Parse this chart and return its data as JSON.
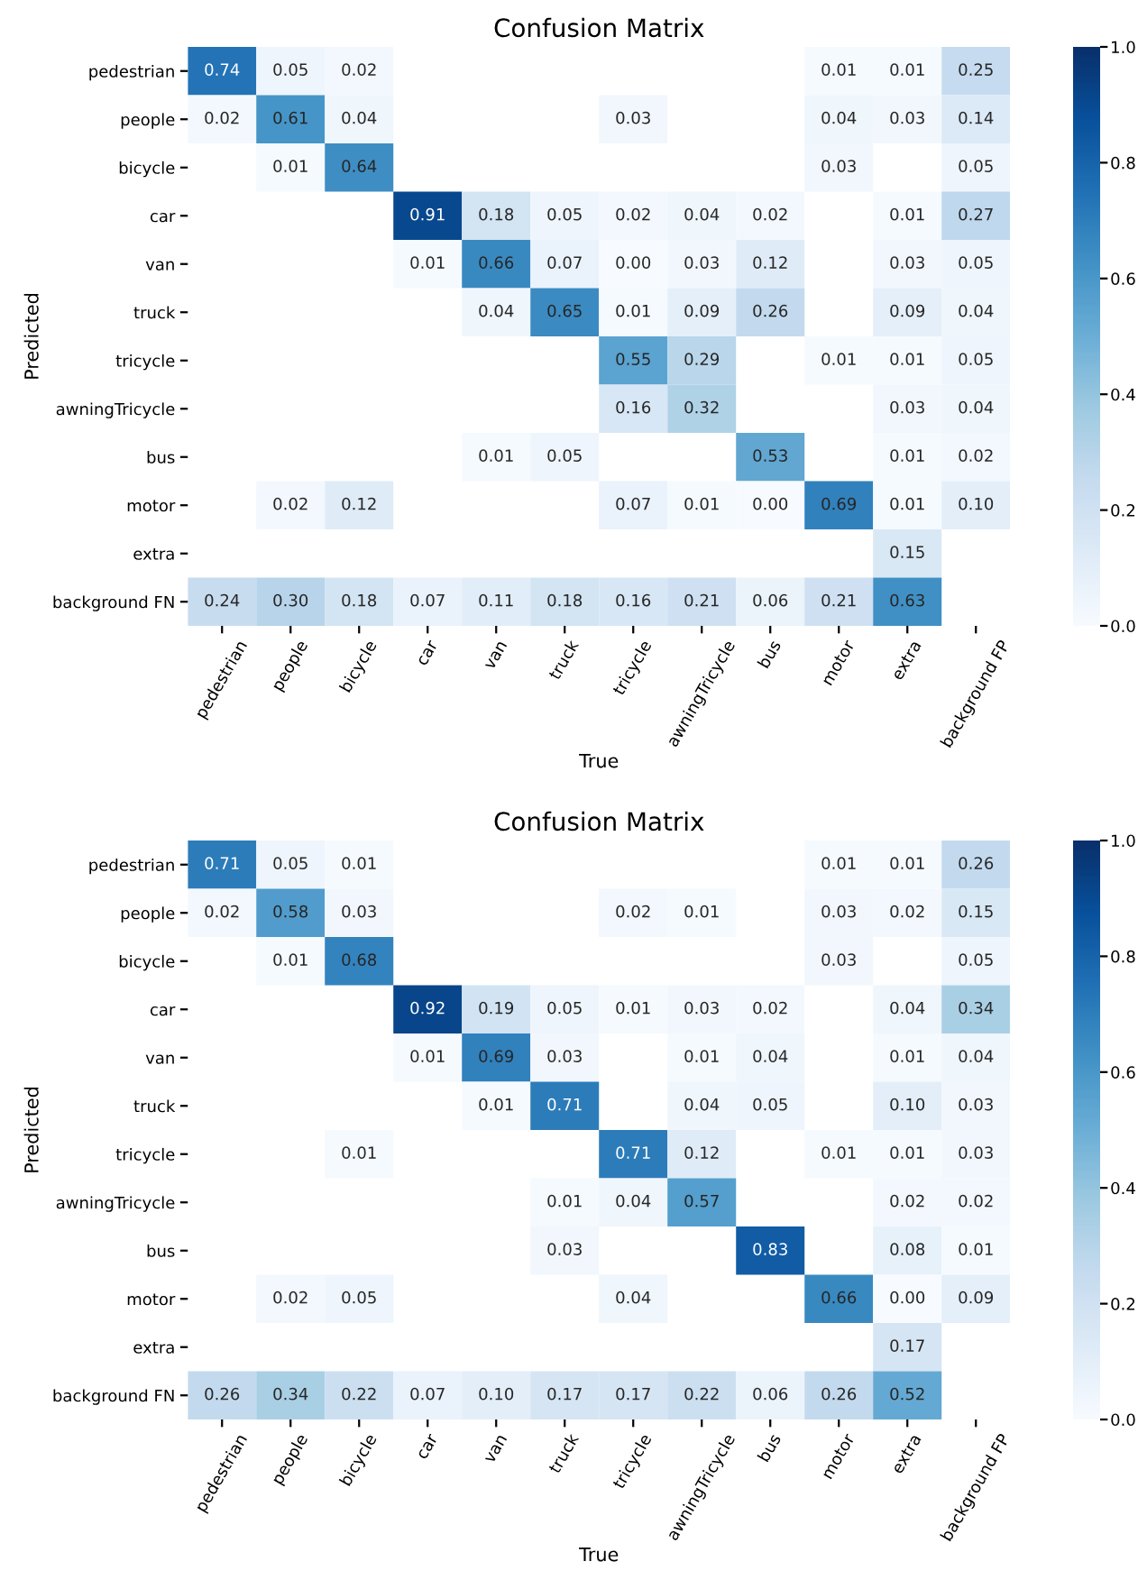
{
  "chart_data": [
    {
      "type": "heatmap",
      "title": "Confusion Matrix",
      "xlabel": "True",
      "ylabel": "Predicted",
      "categories": [
        "pedestrian",
        "people",
        "bicycle",
        "car",
        "van",
        "truck",
        "tricycle",
        "awningTricycle",
        "bus",
        "motor",
        "extra",
        "background FP"
      ],
      "y_categories": [
        "pedestrian",
        "people",
        "bicycle",
        "car",
        "van",
        "truck",
        "tricycle",
        "awningTricycle",
        "bus",
        "motor",
        "extra",
        "background FN"
      ],
      "cells": [
        [
          0.74,
          0.05,
          0.02,
          null,
          null,
          null,
          null,
          null,
          null,
          0.01,
          0.01,
          0.25
        ],
        [
          0.02,
          0.61,
          0.04,
          null,
          null,
          null,
          0.03,
          null,
          null,
          0.04,
          0.03,
          0.14
        ],
        [
          null,
          0.01,
          0.64,
          null,
          null,
          null,
          null,
          null,
          null,
          0.03,
          null,
          0.05
        ],
        [
          null,
          null,
          null,
          0.91,
          0.18,
          0.05,
          0.02,
          0.04,
          0.02,
          null,
          0.01,
          0.27
        ],
        [
          null,
          null,
          null,
          0.01,
          0.66,
          0.07,
          0.0,
          0.03,
          0.12,
          null,
          0.03,
          0.05
        ],
        [
          null,
          null,
          null,
          null,
          0.04,
          0.65,
          0.01,
          0.09,
          0.26,
          null,
          0.09,
          0.04
        ],
        [
          null,
          null,
          null,
          null,
          null,
          null,
          0.55,
          0.29,
          null,
          0.01,
          0.01,
          0.05
        ],
        [
          null,
          null,
          null,
          null,
          null,
          null,
          0.16,
          0.32,
          null,
          null,
          0.03,
          0.04
        ],
        [
          null,
          null,
          null,
          null,
          0.01,
          0.05,
          null,
          null,
          0.53,
          null,
          0.01,
          0.02
        ],
        [
          null,
          0.02,
          0.12,
          null,
          null,
          null,
          0.07,
          0.01,
          0.0,
          0.69,
          0.01,
          0.1
        ],
        [
          null,
          null,
          null,
          null,
          null,
          null,
          null,
          null,
          null,
          null,
          0.15,
          null
        ],
        [
          0.24,
          0.3,
          0.18,
          0.07,
          0.11,
          0.18,
          0.16,
          0.21,
          0.06,
          0.21,
          0.63,
          null
        ]
      ],
      "cell_labels": [
        [
          "0.74",
          "0.05",
          "0.02",
          null,
          null,
          null,
          null,
          null,
          null,
          "0.01",
          "0.01",
          "0.25"
        ],
        [
          "0.02",
          "0.61",
          "0.04",
          null,
          null,
          null,
          "0.03",
          null,
          null,
          "0.04",
          "0.03",
          "0.14"
        ],
        [
          null,
          "0.01",
          "0.64",
          null,
          null,
          null,
          null,
          null,
          null,
          "0.03",
          null,
          "0.05"
        ],
        [
          null,
          null,
          null,
          "0.91",
          "0.18",
          "0.05",
          "0.02",
          "0.04",
          "0.02",
          null,
          "0.01",
          "0.27"
        ],
        [
          null,
          null,
          null,
          "0.01",
          "0.66",
          "0.07",
          "0.00",
          "0.03",
          "0.12",
          null,
          "0.03",
          "0.05"
        ],
        [
          null,
          null,
          null,
          null,
          "0.04",
          "0.65",
          "0.01",
          "0.09",
          "0.26",
          null,
          "0.09",
          "0.04"
        ],
        [
          null,
          null,
          null,
          null,
          null,
          null,
          "0.55",
          "0.29",
          null,
          "0.01",
          "0.01",
          "0.05"
        ],
        [
          null,
          null,
          null,
          null,
          null,
          null,
          "0.16",
          "0.32",
          null,
          null,
          "0.03",
          "0.04"
        ],
        [
          null,
          null,
          null,
          null,
          "0.01",
          "0.05",
          null,
          null,
          "0.53",
          null,
          "0.01",
          "0.02"
        ],
        [
          null,
          "0.02",
          "0.12",
          null,
          null,
          null,
          "0.07",
          "0.01",
          "0.00",
          "0.69",
          "0.01",
          "0.10"
        ],
        [
          null,
          null,
          null,
          null,
          null,
          null,
          null,
          null,
          null,
          null,
          "0.15",
          null
        ],
        [
          "0.24",
          "0.30",
          "0.18",
          "0.07",
          "0.11",
          "0.18",
          "0.16",
          "0.21",
          "0.06",
          "0.21",
          "0.63",
          null
        ]
      ],
      "clim": [
        0,
        1
      ],
      "cticks": [
        {
          "value": 0,
          "label": "0.0"
        },
        {
          "value": 0.2,
          "label": "0.2"
        },
        {
          "value": 0.4,
          "label": "0.4"
        },
        {
          "value": 0.6,
          "label": "0.6"
        },
        {
          "value": 0.8,
          "label": "0.8"
        },
        {
          "value": 1,
          "label": "1.0"
        }
      ]
    },
    {
      "type": "heatmap",
      "title": "Confusion Matrix",
      "xlabel": "True",
      "ylabel": "Predicted",
      "categories": [
        "pedestrian",
        "people",
        "bicycle",
        "car",
        "van",
        "truck",
        "tricycle",
        "awningTricycle",
        "bus",
        "motor",
        "extra",
        "background FP"
      ],
      "y_categories": [
        "pedestrian",
        "people",
        "bicycle",
        "car",
        "van",
        "truck",
        "tricycle",
        "awningTricycle",
        "bus",
        "motor",
        "extra",
        "background FN"
      ],
      "cells": [
        [
          0.71,
          0.05,
          0.01,
          null,
          null,
          null,
          null,
          null,
          null,
          0.01,
          0.01,
          0.26
        ],
        [
          0.02,
          0.58,
          0.03,
          null,
          null,
          null,
          0.02,
          0.01,
          null,
          0.03,
          0.02,
          0.15
        ],
        [
          null,
          0.01,
          0.68,
          null,
          null,
          null,
          null,
          null,
          null,
          0.03,
          null,
          0.05
        ],
        [
          null,
          null,
          null,
          0.92,
          0.19,
          0.05,
          0.01,
          0.03,
          0.02,
          null,
          0.04,
          0.34
        ],
        [
          null,
          null,
          null,
          0.01,
          0.69,
          0.03,
          null,
          0.01,
          0.04,
          null,
          0.01,
          0.04
        ],
        [
          null,
          null,
          null,
          null,
          0.01,
          0.71,
          null,
          0.04,
          0.05,
          null,
          0.1,
          0.03
        ],
        [
          null,
          null,
          0.01,
          null,
          null,
          null,
          0.71,
          0.12,
          null,
          0.01,
          0.01,
          0.03
        ],
        [
          null,
          null,
          null,
          null,
          null,
          0.01,
          0.04,
          0.57,
          null,
          null,
          0.02,
          0.02
        ],
        [
          null,
          null,
          null,
          null,
          null,
          0.03,
          null,
          null,
          0.83,
          null,
          0.08,
          0.01
        ],
        [
          null,
          0.02,
          0.05,
          null,
          null,
          null,
          0.04,
          null,
          null,
          0.66,
          0.0,
          0.09
        ],
        [
          null,
          null,
          null,
          null,
          null,
          null,
          null,
          null,
          null,
          null,
          0.17,
          null
        ],
        [
          0.26,
          0.34,
          0.22,
          0.07,
          0.1,
          0.17,
          0.17,
          0.22,
          0.06,
          0.26,
          0.52,
          null
        ]
      ],
      "cell_labels": [
        [
          "0.71",
          "0.05",
          "0.01",
          null,
          null,
          null,
          null,
          null,
          null,
          "0.01",
          "0.01",
          "0.26"
        ],
        [
          "0.02",
          "0.58",
          "0.03",
          null,
          null,
          null,
          "0.02",
          "0.01",
          null,
          "0.03",
          "0.02",
          "0.15"
        ],
        [
          null,
          "0.01",
          "0.68",
          null,
          null,
          null,
          null,
          null,
          null,
          "0.03",
          null,
          "0.05"
        ],
        [
          null,
          null,
          null,
          "0.92",
          "0.19",
          "0.05",
          "0.01",
          "0.03",
          "0.02",
          null,
          "0.04",
          "0.34"
        ],
        [
          null,
          null,
          null,
          "0.01",
          "0.69",
          "0.03",
          null,
          "0.01",
          "0.04",
          null,
          "0.01",
          "0.04"
        ],
        [
          null,
          null,
          null,
          null,
          "0.01",
          "0.71",
          null,
          "0.04",
          "0.05",
          null,
          "0.10",
          "0.03"
        ],
        [
          null,
          null,
          "0.01",
          null,
          null,
          null,
          "0.71",
          "0.12",
          null,
          "0.01",
          "0.01",
          "0.03"
        ],
        [
          null,
          null,
          null,
          null,
          null,
          "0.01",
          "0.04",
          "0.57",
          null,
          null,
          "0.02",
          "0.02"
        ],
        [
          null,
          null,
          null,
          null,
          null,
          "0.03",
          null,
          null,
          "0.83",
          null,
          "0.08",
          "0.01"
        ],
        [
          null,
          "0.02",
          "0.05",
          null,
          null,
          null,
          "0.04",
          null,
          null,
          "0.66",
          "0.00",
          "0.09"
        ],
        [
          null,
          null,
          null,
          null,
          null,
          null,
          null,
          null,
          null,
          null,
          "0.17",
          null
        ],
        [
          "0.26",
          "0.34",
          "0.22",
          "0.07",
          "0.10",
          "0.17",
          "0.17",
          "0.22",
          "0.06",
          "0.26",
          "0.52",
          null
        ]
      ],
      "clim": [
        0,
        1
      ],
      "cticks": [
        {
          "value": 0,
          "label": "0.0"
        },
        {
          "value": 0.2,
          "label": "0.2"
        },
        {
          "value": 0.4,
          "label": "0.4"
        },
        {
          "value": 0.6,
          "label": "0.6"
        },
        {
          "value": 0.8,
          "label": "0.8"
        },
        {
          "value": 1,
          "label": "1.0"
        }
      ]
    }
  ]
}
